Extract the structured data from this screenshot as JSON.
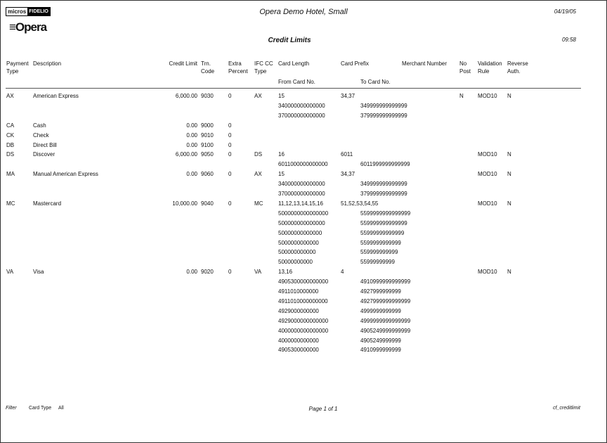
{
  "header": {
    "logo_micros": "micros",
    "logo_fidelio": "FIDELIO",
    "logo_opera": "Opera",
    "hotel": "Opera Demo Hotel, Small",
    "date": "04/19/05",
    "time": "09:58",
    "title": "Credit Limits"
  },
  "columns": {
    "payment_type": [
      "Payment",
      "Type"
    ],
    "description": "Description",
    "credit_limit": "Credit Limit",
    "trn_code": [
      "Trn.",
      "Code"
    ],
    "extra_percent": [
      "Extra",
      "Percent"
    ],
    "ifc_cc_type": [
      "IFC CC",
      "Type"
    ],
    "card_length": "Card Length",
    "card_prefix": "Card Prefix",
    "merchant_number": "Merchant Number",
    "no_post": [
      "No",
      "Post"
    ],
    "validation_rule": [
      "Validation",
      "Rule"
    ],
    "reverse_auth": [
      "Reverse",
      "Auth."
    ],
    "from_card": "From Card No.",
    "to_card": "To Card No."
  },
  "rows": [
    {
      "type": "AX",
      "desc": "American Express",
      "credit": "6,000.00",
      "trn": "9030",
      "extra": "0",
      "ifc": "AX",
      "length": "15",
      "prefix": "34,37",
      "merchant": "",
      "nopost": "N",
      "rule": "MOD10",
      "reverse": "N",
      "ranges": [
        [
          "340000000000000",
          "349999999999999"
        ],
        [
          "370000000000000",
          "379999999999999"
        ]
      ]
    },
    {
      "type": "CA",
      "desc": "Cash",
      "credit": "0.00",
      "trn": "9000",
      "extra": "0",
      "ifc": "",
      "length": "",
      "prefix": "",
      "merchant": "",
      "nopost": "",
      "rule": "",
      "reverse": "",
      "ranges": []
    },
    {
      "type": "CK",
      "desc": "Check",
      "credit": "0.00",
      "trn": "9010",
      "extra": "0",
      "ifc": "",
      "length": "",
      "prefix": "",
      "merchant": "",
      "nopost": "",
      "rule": "",
      "reverse": "",
      "ranges": []
    },
    {
      "type": "DB",
      "desc": "Direct Bill",
      "credit": "0.00",
      "trn": "9100",
      "extra": "0",
      "ifc": "",
      "length": "",
      "prefix": "",
      "merchant": "",
      "nopost": "",
      "rule": "",
      "reverse": "",
      "ranges": []
    },
    {
      "type": "DS",
      "desc": "Discover",
      "credit": "6,000.00",
      "trn": "9050",
      "extra": "0",
      "ifc": "DS",
      "length": "16",
      "prefix": "6011",
      "merchant": "",
      "nopost": "",
      "rule": "MOD10",
      "reverse": "N",
      "ranges": [
        [
          "6011000000000000",
          "6011999999999999"
        ]
      ]
    },
    {
      "type": "MA",
      "desc": "Manual American Express",
      "credit": "0.00",
      "trn": "9060",
      "extra": "0",
      "ifc": "AX",
      "length": "15",
      "prefix": "34,37",
      "merchant": "",
      "nopost": "",
      "rule": "MOD10",
      "reverse": "N",
      "ranges": [
        [
          "340000000000000",
          "349999999999999"
        ],
        [
          "370000000000000",
          "379999999999999"
        ]
      ]
    },
    {
      "type": "MC",
      "desc": "Mastercard",
      "credit": "10,000.00",
      "trn": "9040",
      "extra": "0",
      "ifc": "MC",
      "length": "11,12,13,14,15,16",
      "prefix": "51,52,53,54,55",
      "merchant": "",
      "nopost": "",
      "rule": "MOD10",
      "reverse": "N",
      "ranges": [
        [
          "5000000000000000",
          "5599999999999999"
        ],
        [
          "500000000000000",
          "559999999999999"
        ],
        [
          "50000000000000",
          "55999999999999"
        ],
        [
          "5000000000000",
          "5599999999999"
        ],
        [
          "500000000000",
          "559999999999"
        ],
        [
          "50000000000",
          "55999999999"
        ]
      ]
    },
    {
      "type": "VA",
      "desc": "Visa",
      "credit": "0.00",
      "trn": "9020",
      "extra": "0",
      "ifc": "VA",
      "length": "13,16",
      "prefix": "4",
      "merchant": "",
      "nopost": "",
      "rule": "MOD10",
      "reverse": "N",
      "ranges": [
        [
          "4905300000000000",
          "4910999999999999"
        ],
        [
          "4911010000000",
          "4927999999999"
        ],
        [
          "4911010000000000",
          "4927999999999999"
        ],
        [
          "4929000000000",
          "4999999999999"
        ],
        [
          "4929000000000000",
          "4999999999999999"
        ],
        [
          "4000000000000000",
          "4905249999999999"
        ],
        [
          "4000000000000",
          "4905249999999"
        ],
        [
          "4905300000000",
          "4910999999999"
        ]
      ]
    }
  ],
  "footer": {
    "filter_label": "Filter",
    "card_type_label": "Card Type",
    "card_type_value": "All",
    "page": "Page 1 of 1",
    "report_name": "cf_creditlimit"
  }
}
